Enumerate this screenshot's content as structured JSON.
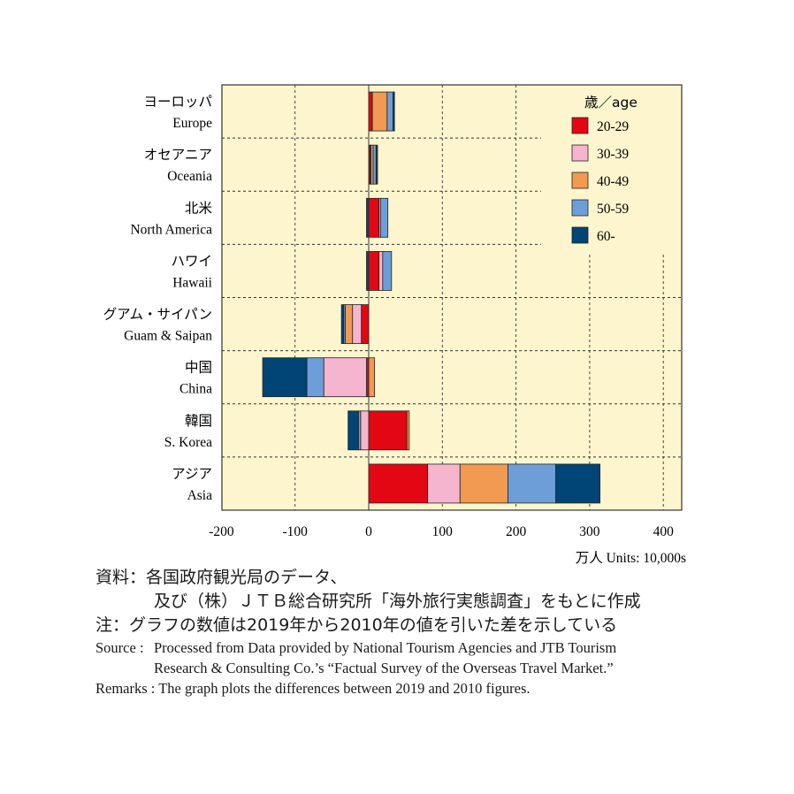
{
  "chart_data": {
    "type": "bar",
    "orientation": "horizontal",
    "stacked": true,
    "categories_jp": [
      "ヨーロッパ",
      "オセアニア",
      "北米",
      "ハワイ",
      "グアム・サイパン",
      "中国",
      "韓国",
      "アジア"
    ],
    "categories": [
      "Europe",
      "Oceania",
      "North America",
      "Hawaii",
      "Guam & Saipan",
      "China",
      "S. Korea",
      "Asia"
    ],
    "series": [
      {
        "name": "20-29",
        "color": "#e30613",
        "values": [
          5,
          2,
          14,
          14,
          -10,
          -3,
          52,
          80
        ]
      },
      {
        "name": "30-39",
        "color": "#f5b5cf",
        "values": [
          0,
          1,
          2,
          5,
          -12,
          -58,
          -11,
          44
        ]
      },
      {
        "name": "40-49",
        "color": "#f09a52",
        "values": [
          20,
          3,
          0,
          0,
          -10,
          8,
          3,
          65
        ]
      },
      {
        "name": "50-59",
        "color": "#6d9ed8",
        "values": [
          8,
          4,
          10,
          12,
          -2,
          -23,
          -3,
          65
        ]
      },
      {
        "name": "60-",
        "color": "#004575",
        "values": [
          2,
          2,
          -3,
          -3,
          -3,
          -60,
          -14,
          60
        ]
      }
    ],
    "legend_title": "歳／age",
    "legend_position": "top-right",
    "xlim": [
      -200,
      425
    ],
    "xticks": [
      -200,
      -100,
      0,
      100,
      200,
      300,
      400
    ],
    "units": "万人 Units: 10,000s",
    "grid": true,
    "background": "#fcf5cd"
  },
  "notes": {
    "source_jp_1": "資料：各国政府観光局のデータ、",
    "source_jp_2": "及び（株）ＪＴＢ総合研究所「海外旅行実態調査」をもとに作成",
    "remark_jp": "注：グラフの数値は2019年から2010年の値を引いた差を示している",
    "source_label_en": "Source :",
    "source_en_1": "Processed from Data provided by National Tourism Agencies and JTB Tourism",
    "source_en_2": "Research & Consulting Co.’s “Factual Survey of the Overseas Travel Market.”",
    "remark_en": "Remarks : The graph plots the differences between 2019 and 2010 figures."
  }
}
